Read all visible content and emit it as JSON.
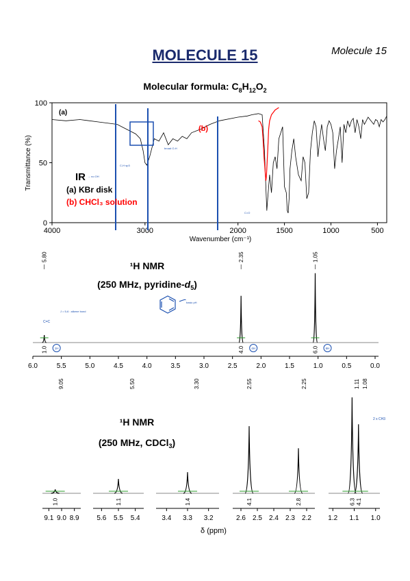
{
  "header": {
    "title": "MOLECULE 15",
    "tag": "Molecule 15",
    "formula_prefix": "Molecular formula: ",
    "formula_c": "C",
    "formula_c_n": "8",
    "formula_h": "H",
    "formula_h_n": "12",
    "formula_o": "O",
    "formula_o_n": "2"
  },
  "chart_data": [
    {
      "type": "line",
      "title": "IR",
      "xlabel": "Wavenumber (cm⁻¹)",
      "ylabel": "Transmittance (%)",
      "xlim": [
        4000,
        400
      ],
      "ylim": [
        0,
        100
      ],
      "xticks": [
        4000,
        3000,
        2000,
        1500,
        1000,
        500
      ],
      "yticks": [
        0,
        50,
        100
      ],
      "legend": [
        "(a) KBr disk",
        "(b) CHCl₃ solution"
      ],
      "panel_label": "(a)",
      "series_b_label": "(b)",
      "series": [
        {
          "name": "(a) KBr disk",
          "color": "#000000",
          "x": [
            4000,
            3850,
            3700,
            3500,
            3300,
            3200,
            3100,
            3050,
            3020,
            3000,
            2980,
            2950,
            2900,
            2850,
            2800,
            2750,
            2700,
            2650,
            2600,
            2550,
            2500,
            2400,
            2300,
            2200,
            2000,
            1900,
            1850,
            1780,
            1740,
            1715,
            1700,
            1690,
            1680,
            1660,
            1640,
            1620,
            1600,
            1580,
            1560,
            1540,
            1520,
            1500,
            1480,
            1470,
            1460,
            1450,
            1440,
            1420,
            1400,
            1380,
            1350,
            1320,
            1300,
            1280,
            1260,
            1240,
            1220,
            1200,
            1180,
            1160,
            1140,
            1120,
            1100,
            1080,
            1060,
            1040,
            1020,
            1000,
            980,
            960,
            940,
            920,
            900,
            880,
            860,
            840,
            820,
            800,
            780,
            760,
            740,
            720,
            700,
            680,
            660,
            640,
            620,
            600,
            580,
            560,
            540,
            520,
            500,
            480,
            460,
            440,
            420,
            400
          ],
          "y": [
            86,
            85,
            86,
            84,
            82,
            78,
            74,
            70,
            60,
            50,
            48,
            55,
            70,
            68,
            75,
            65,
            70,
            68,
            72,
            70,
            75,
            78,
            82,
            85,
            88,
            89,
            90,
            91,
            90,
            60,
            30,
            10,
            20,
            40,
            25,
            50,
            55,
            45,
            70,
            75,
            80,
            30,
            25,
            10,
            8,
            20,
            45,
            60,
            70,
            55,
            40,
            35,
            55,
            50,
            20,
            25,
            60,
            75,
            85,
            80,
            55,
            70,
            82,
            70,
            60,
            80,
            85,
            82,
            75,
            45,
            60,
            70,
            80,
            50,
            82,
            75,
            85,
            80,
            85,
            87,
            75,
            86,
            80,
            70,
            86,
            82,
            85,
            88,
            86,
            84,
            82,
            86,
            85,
            80,
            86,
            84,
            86,
            89
          ]
        },
        {
          "name": "(b) CHCl₃ solution",
          "color": "#ff0000",
          "x": [
            1780,
            1760,
            1740,
            1730,
            1720,
            1710,
            1705,
            1700,
            1695,
            1690,
            1680,
            1670,
            1660,
            1640,
            1620,
            1600,
            1580,
            1560
          ],
          "y": [
            85,
            84,
            80,
            70,
            55,
            45,
            40,
            35,
            38,
            45,
            60,
            78,
            85,
            90,
            92,
            94,
            95,
            96
          ]
        }
      ],
      "annotations": [
        "→ no OH",
        "C-H sp3",
        "broad O-H",
        "C=O"
      ]
    },
    {
      "type": "line",
      "title": "¹H NMR",
      "subtitle_prefix": "(250 MHz, pyridine-",
      "subtitle_solvent": "d",
      "subtitle_sub": "5",
      "subtitle_suffix": ")",
      "xlim": [
        6.0,
        0.0
      ],
      "xticks": [
        6.0,
        5.5,
        5.0,
        4.5,
        4.0,
        3.5,
        3.0,
        2.5,
        2.0,
        1.5,
        1.0,
        0.5,
        0.0
      ],
      "peaks": [
        {
          "shift": 5.8,
          "height": 0.1,
          "label": "5.80",
          "integral": "1.0",
          "circled": "1H"
        },
        {
          "shift": 2.35,
          "height": 0.62,
          "label": "2.35",
          "integral": "4.0",
          "circled": "4H"
        },
        {
          "shift": 1.05,
          "height": 0.92,
          "label": "1.05",
          "integral": "6.0",
          "circled": "6H"
        }
      ],
      "annotations": [
        "C=C",
        "J = 5-6 : alkene bond",
        "basic pH"
      ]
    },
    {
      "type": "line",
      "title": "¹H NMR",
      "subtitle_prefix": "(250 MHz, CDCl",
      "subtitle_sub": "3",
      "subtitle_suffix": ")",
      "xlabel": "δ (ppm)",
      "segments": [
        {
          "xlim": [
            9.15,
            8.85
          ],
          "xticks": [
            9.1,
            9.0,
            8.9
          ],
          "peaks": [
            {
              "shift": 9.05,
              "height": 0.04,
              "integral": "1.0"
            }
          ]
        },
        {
          "xlim": [
            5.65,
            5.35
          ],
          "xticks": [
            5.6,
            5.5,
            5.4
          ],
          "peaks": [
            {
              "shift": 5.5,
              "height": 0.15,
              "integral": "1.1"
            }
          ]
        },
        {
          "xlim": [
            3.45,
            3.15
          ],
          "xticks": [
            3.4,
            3.3,
            3.2
          ],
          "peaks": [
            {
              "shift": 3.3,
              "height": 0.22,
              "integral": "1.4"
            }
          ]
        },
        {
          "xlim": [
            2.65,
            2.15
          ],
          "xticks": [
            2.6,
            2.5,
            2.4,
            2.3,
            2.2
          ],
          "peaks": [
            {
              "shift": 2.55,
              "height": 0.7,
              "integral": "4.1"
            },
            {
              "shift": 2.25,
              "height": 0.47,
              "integral": "2.8"
            }
          ]
        },
        {
          "xlim": [
            1.22,
            0.98
          ],
          "xticks": [
            1.2,
            1.1,
            1.0
          ],
          "peaks": [
            {
              "shift": 1.11,
              "height": 1.0,
              "integral": "6.3"
            },
            {
              "shift": 1.08,
              "height": 0.72,
              "integral": "4.1"
            }
          ]
        }
      ],
      "shift_labels": [
        "9.05",
        "5.50",
        "3.30",
        "2.55",
        "2.25",
        "1.11",
        "1.08"
      ],
      "annotations": [
        "2 x CH3"
      ]
    }
  ]
}
